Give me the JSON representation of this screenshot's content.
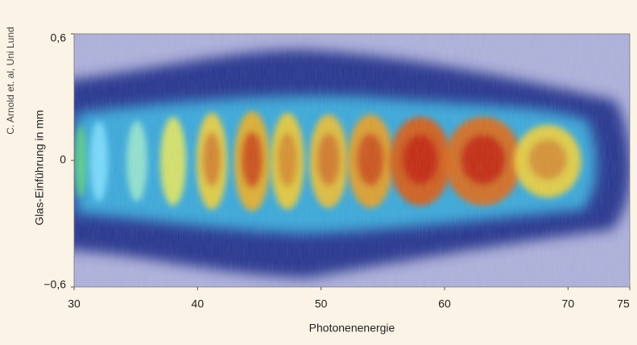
{
  "chart_data": {
    "type": "heatmap",
    "credit": "C. Arnold et. al, Uni Lund",
    "xlabel": "Photonenenergie",
    "ylabel": "Glas-Einführung in mm",
    "xlim": [
      30,
      75
    ],
    "xticks": [
      30,
      40,
      50,
      60,
      70,
      75
    ],
    "ylim": [
      -0.6,
      0.6
    ],
    "yticks": [
      {
        "value": 0.6,
        "label": "0,6"
      },
      {
        "value": 0,
        "label": "0"
      },
      {
        "value": -0.6,
        "label": "−0,6"
      }
    ]
  }
}
